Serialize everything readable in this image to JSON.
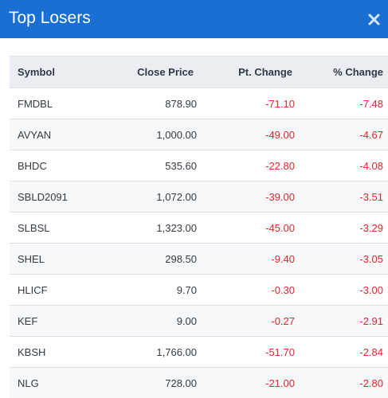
{
  "dialog": {
    "title": "Top Losers",
    "close_icon": "close-x-icon"
  },
  "table": {
    "columns": [
      "Symbol",
      "Close Price",
      "Pt. Change",
      "% Change"
    ],
    "rows": [
      {
        "symbol": "FMDBL",
        "close": "878.90",
        "pt": "-71.10",
        "pct": "-7.48"
      },
      {
        "symbol": "AVYAN",
        "close": "1,000.00",
        "pt": "-49.00",
        "pct": "-4.67"
      },
      {
        "symbol": "BHDC",
        "close": "535.60",
        "pt": "-22.80",
        "pct": "-4.08"
      },
      {
        "symbol": "SBLD2091",
        "close": "1,072.00",
        "pt": "-39.00",
        "pct": "-3.51"
      },
      {
        "symbol": "SLBSL",
        "close": "1,323.00",
        "pt": "-45.00",
        "pct": "-3.29"
      },
      {
        "symbol": "SHEL",
        "close": "298.50",
        "pt": "-9.40",
        "pct": "-3.05"
      },
      {
        "symbol": "HLICF",
        "close": "9.70",
        "pt": "-0.30",
        "pct": "-3.00"
      },
      {
        "symbol": "KEF",
        "close": "9.00",
        "pt": "-0.27",
        "pct": "-2.91"
      },
      {
        "symbol": "KBSH",
        "close": "1,766.00",
        "pt": "-51.70",
        "pct": "-2.84"
      },
      {
        "symbol": "NLG",
        "close": "728.00",
        "pt": "-21.00",
        "pct": "-2.80"
      }
    ]
  },
  "colors": {
    "header_bg": "#1a6fd2",
    "negative": "#e0262d"
  }
}
